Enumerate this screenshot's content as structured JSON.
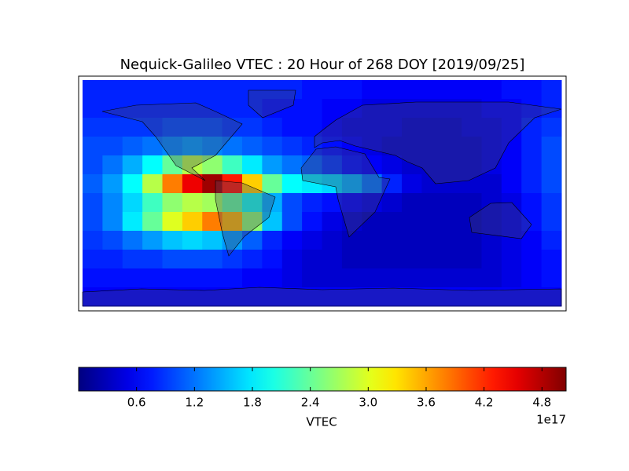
{
  "chart_data": {
    "type": "heatmap",
    "title": "Nequick-Galileo VTEC : 20 Hour of 268 DOY [2019/09/25]",
    "colormap": "jet",
    "clim": [
      0,
      5.05
    ],
    "colorbar_ticks": [
      0.6,
      1.2,
      1.8,
      2.4,
      {
        "value": 3,
        "label": "3.0"
      },
      3.6,
      4.2,
      4.8
    ],
    "colorbar_label": "VTEC",
    "colorbar_offset": "1e17",
    "z": [
      [
        0.8,
        0.8,
        0.8,
        0.8,
        0.8,
        0.8,
        0.8,
        0.8,
        0.8,
        0.8,
        0.8,
        0.7,
        0.7,
        0.7,
        0.6,
        0.6,
        0.6,
        0.6,
        0.6,
        0.6,
        0.6,
        0.7,
        0.7,
        0.8
      ],
      [
        0.8,
        0.8,
        0.8,
        0.8,
        0.8,
        0.8,
        0.8,
        0.8,
        0.8,
        0.7,
        0.7,
        0.7,
        0.6,
        0.6,
        0.5,
        0.5,
        0.5,
        0.5,
        0.5,
        0.5,
        0.6,
        0.6,
        0.7,
        0.8
      ],
      [
        0.9,
        0.9,
        0.9,
        0.9,
        1.0,
        1.0,
        1.0,
        0.9,
        0.9,
        0.8,
        0.7,
        0.7,
        0.6,
        0.5,
        0.5,
        0.5,
        0.4,
        0.4,
        0.4,
        0.5,
        0.5,
        0.6,
        0.8,
        0.9
      ],
      [
        1.0,
        1.0,
        1.1,
        1.2,
        1.3,
        1.4,
        1.3,
        1.2,
        1.1,
        1.0,
        0.9,
        0.8,
        0.7,
        0.6,
        0.5,
        0.4,
        0.4,
        0.4,
        0.4,
        0.4,
        0.5,
        0.6,
        0.8,
        1.0
      ],
      [
        1.0,
        1.2,
        1.5,
        1.9,
        2.4,
        2.8,
        2.6,
        2.2,
        1.8,
        1.4,
        1.2,
        1.1,
        0.9,
        0.7,
        0.6,
        0.5,
        0.4,
        0.4,
        0.4,
        0.4,
        0.5,
        0.6,
        0.8,
        1.0
      ],
      [
        1.1,
        1.4,
        1.9,
        2.8,
        3.8,
        4.5,
        4.9,
        4.3,
        3.4,
        2.4,
        1.9,
        1.8,
        1.7,
        1.5,
        1.2,
        0.8,
        0.5,
        0.4,
        0.4,
        0.4,
        0.4,
        0.6,
        0.8,
        1.0
      ],
      [
        1.0,
        1.3,
        1.7,
        2.2,
        2.6,
        2.8,
        2.7,
        2.4,
        2.0,
        1.5,
        1.0,
        0.8,
        0.7,
        0.6,
        0.5,
        0.4,
        0.3,
        0.3,
        0.3,
        0.3,
        0.4,
        0.5,
        0.7,
        0.9
      ],
      [
        1.0,
        1.3,
        1.8,
        2.4,
        3.0,
        3.4,
        3.8,
        3.5,
        2.6,
        1.6,
        1.0,
        0.7,
        0.5,
        0.4,
        0.3,
        0.3,
        0.3,
        0.3,
        0.3,
        0.3,
        0.4,
        0.5,
        0.7,
        0.9
      ],
      [
        0.9,
        1.0,
        1.2,
        1.4,
        1.6,
        1.7,
        1.6,
        1.4,
        1.1,
        0.8,
        0.6,
        0.5,
        0.4,
        0.3,
        0.3,
        0.3,
        0.3,
        0.3,
        0.3,
        0.3,
        0.4,
        0.5,
        0.6,
        0.8
      ],
      [
        0.8,
        0.8,
        0.9,
        0.9,
        1.0,
        1.0,
        1.0,
        0.9,
        0.8,
        0.7,
        0.5,
        0.4,
        0.4,
        0.3,
        0.3,
        0.3,
        0.3,
        0.3,
        0.3,
        0.3,
        0.4,
        0.5,
        0.6,
        0.7
      ],
      [
        0.7,
        0.7,
        0.7,
        0.7,
        0.7,
        0.7,
        0.7,
        0.7,
        0.6,
        0.6,
        0.5,
        0.4,
        0.4,
        0.4,
        0.4,
        0.4,
        0.4,
        0.4,
        0.4,
        0.4,
        0.4,
        0.5,
        0.6,
        0.7
      ],
      [
        0.6,
        0.6,
        0.6,
        0.6,
        0.6,
        0.6,
        0.6,
        0.6,
        0.6,
        0.6,
        0.6,
        0.6,
        0.6,
        0.6,
        0.6,
        0.6,
        0.6,
        0.6,
        0.6,
        0.6,
        0.6,
        0.6,
        0.6,
        0.6
      ]
    ]
  }
}
